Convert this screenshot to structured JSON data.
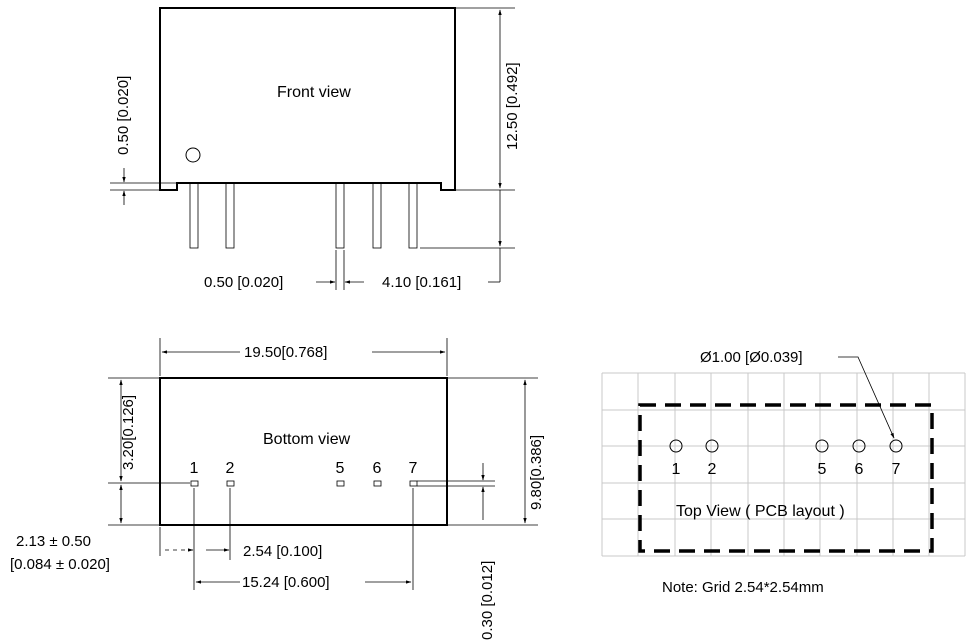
{
  "front": {
    "title": "Front view",
    "dim_height": "12.50 [0.492]",
    "dim_standoff": "0.50 [0.020]",
    "dim_pin_width": "0.50 [0.020]",
    "dim_pin_length": "4.10 [0.161]"
  },
  "bottom": {
    "title": "Bottom view",
    "dim_length": "19.50[0.768]",
    "dim_width": "9.80[0.386]",
    "dim_row_offset": "3.20[0.126]",
    "dim_edge_mm": "2.13 ± 0.50",
    "dim_edge_in": "[0.084 ± 0.020]",
    "dim_pitch": "2.54 [0.100]",
    "dim_span": "15.24 [0.600]",
    "dim_pin_thickness": "0.30 [0.012]",
    "pins": [
      "1",
      "2",
      "5",
      "6",
      "7"
    ]
  },
  "pcb": {
    "title": "Top View ( PCB layout )",
    "hole_dim": "Ø1.00 [Ø0.039]",
    "note": "Note: Grid 2.54*2.54mm",
    "pins": [
      "1",
      "2",
      "5",
      "6",
      "7"
    ]
  }
}
